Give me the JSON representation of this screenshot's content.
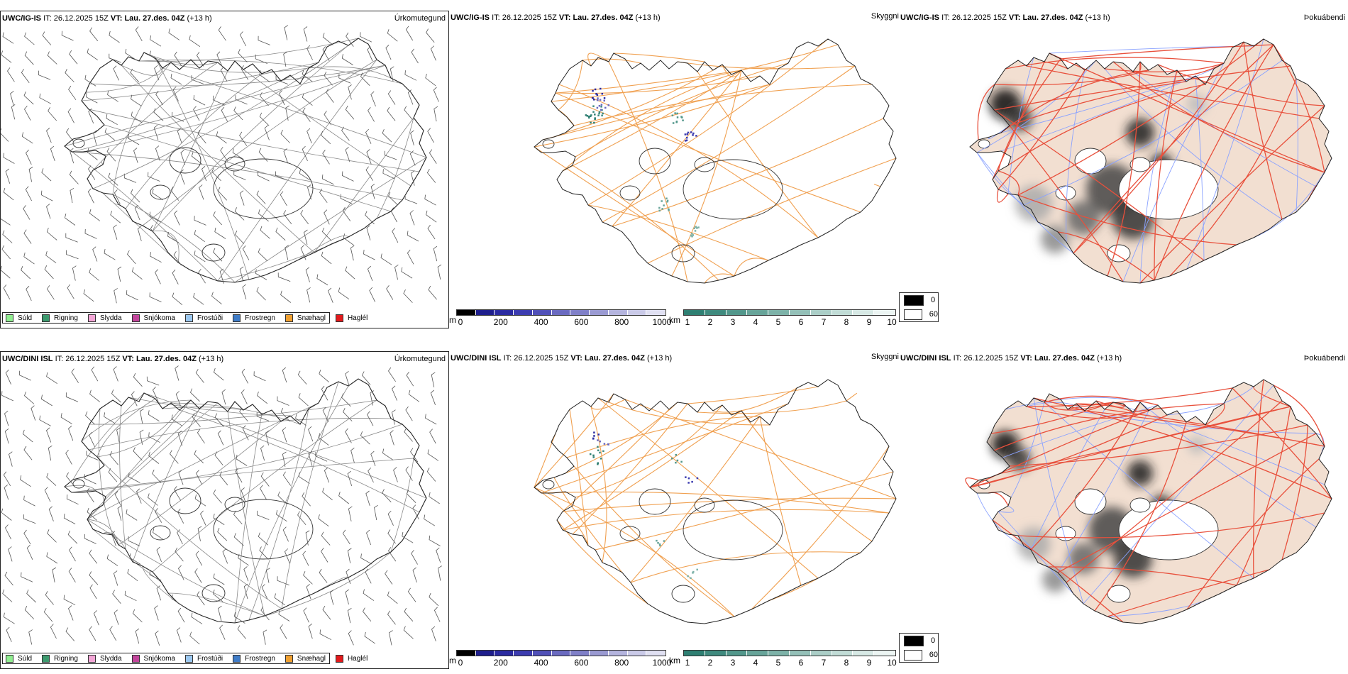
{
  "rows": [
    {
      "model": "UWC/IG-IS",
      "it_label": "IT:",
      "it_value": "26.12.2025 15Z",
      "vt_label": "VT:",
      "vt_value": "Lau. 27.des. 04Z",
      "lead": "(+13 h)"
    },
    {
      "model": "UWC/DINI ISL",
      "it_label": "IT:",
      "it_value": "26.12.2025 15Z",
      "vt_label": "VT:",
      "vt_value": "Lau. 27.des. 04Z",
      "lead": "(+13 h)"
    }
  ],
  "panel_titles": {
    "precip": "Úrkomutegund",
    "visibility": "Skyggni",
    "fog": "Þokuábendi"
  },
  "precip_legend": [
    {
      "label": "Súld",
      "color": "#90ee90"
    },
    {
      "label": "Rigning",
      "color": "#3c9a6e"
    },
    {
      "label": "Slydda",
      "color": "#f4a6d7"
    },
    {
      "label": "Snjókoma",
      "color": "#c2449b"
    },
    {
      "label": "Frostúði",
      "color": "#9cc8f0"
    },
    {
      "label": "Frostregn",
      "color": "#3f7cc8"
    },
    {
      "label": "Snæhagl",
      "color": "#f0a030"
    },
    {
      "label": "Haglél",
      "color": "#e31a1c"
    }
  ],
  "cloudbase_bar": {
    "unit": "m",
    "ticks": [
      "0",
      "200",
      "400",
      "600",
      "800",
      "1000"
    ],
    "colors": [
      "#000000",
      "#1e1e8c",
      "#2a2aa0",
      "#3c3cb0",
      "#5050b8",
      "#6a6ac0",
      "#8080c8",
      "#9a9ad2",
      "#b4b4de",
      "#cacae8",
      "#e0e0f2"
    ]
  },
  "visibility_bar": {
    "unit": "km",
    "ticks": [
      "1",
      "2",
      "3",
      "4",
      "5",
      "6",
      "7",
      "8",
      "9",
      "10"
    ],
    "colors": [
      "#2e7f72",
      "#3f8a7e",
      "#52978b",
      "#67a499",
      "#7db2a8",
      "#94c0b8",
      "#abcec7",
      "#c1dcd6",
      "#d7e9e5",
      "#ecf5f3"
    ]
  },
  "fog_legend": [
    {
      "label": "0",
      "color": "#000000"
    },
    {
      "label": "60",
      "color": "#ffffff"
    }
  ],
  "colors": {
    "land_fog": "#f2dfd1",
    "roads_fog": "#e8503c",
    "rivers_fog": "#8aa2ff",
    "roads_vis": "#f0a050",
    "coast": "#222222"
  }
}
